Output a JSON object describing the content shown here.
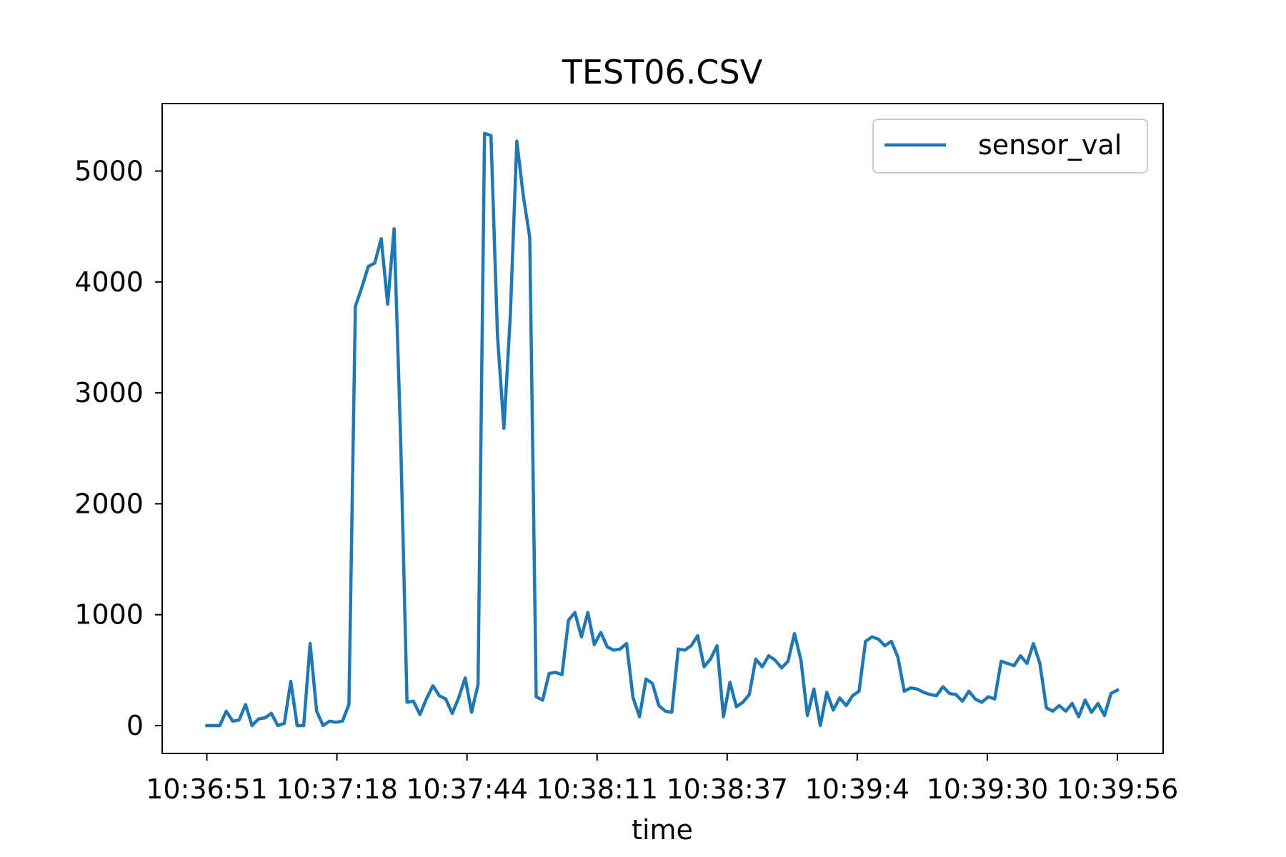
{
  "chart_data": {
    "type": "line",
    "title": "TEST06.CSV",
    "xlabel": "time",
    "ylabel": "",
    "xticks": [
      "10:36:51",
      "10:37:18",
      "10:37:44",
      "10:38:11",
      "10:38:37",
      "10:39:4",
      "10:39:30",
      "10:39:56"
    ],
    "yticks": [
      0,
      1000,
      2000,
      3000,
      4000,
      5000
    ],
    "ylim": [
      -260,
      5600
    ],
    "grid": false,
    "legend": "top-right",
    "colors": {
      "line": "#1f77b4"
    },
    "series": [
      {
        "name": "sensor_val",
        "values": [
          0,
          0,
          0,
          130,
          40,
          50,
          190,
          0,
          60,
          70,
          110,
          0,
          20,
          400,
          0,
          0,
          740,
          130,
          0,
          40,
          30,
          40,
          190,
          3780,
          3950,
          4140,
          4170,
          4390,
          3800,
          4480,
          2600,
          210,
          220,
          100,
          240,
          360,
          270,
          240,
          110,
          250,
          430,
          120,
          370,
          5340,
          5320,
          3520,
          2680,
          3700,
          5270,
          4780,
          4400,
          260,
          230,
          470,
          480,
          460,
          950,
          1020,
          800,
          1020,
          730,
          840,
          710,
          680,
          690,
          740,
          250,
          80,
          420,
          380,
          180,
          130,
          120,
          690,
          680,
          720,
          810,
          530,
          600,
          720,
          80,
          390,
          170,
          210,
          280,
          600,
          530,
          630,
          590,
          520,
          580,
          830,
          590,
          90,
          330,
          0,
          300,
          140,
          250,
          180,
          270,
          310,
          760,
          800,
          780,
          720,
          760,
          620,
          310,
          340,
          330,
          300,
          280,
          270,
          350,
          290,
          280,
          220,
          310,
          240,
          210,
          260,
          240,
          580,
          560,
          540,
          630,
          560,
          740,
          560,
          160,
          130,
          180,
          130,
          200,
          80,
          230,
          120,
          200,
          90,
          290,
          320
        ]
      }
    ]
  }
}
